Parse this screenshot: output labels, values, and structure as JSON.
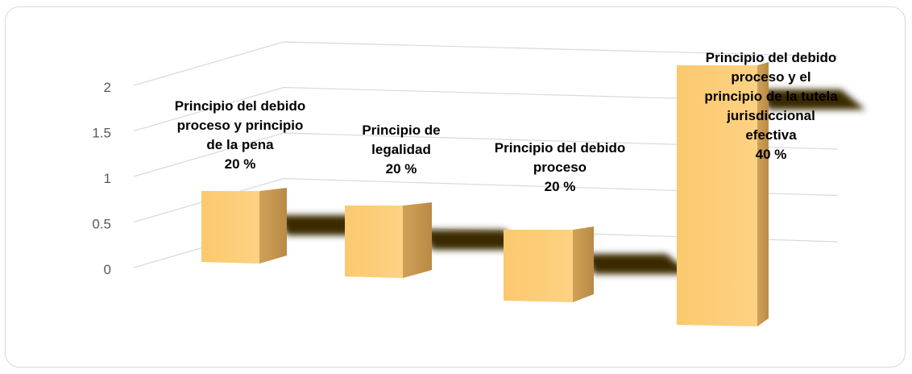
{
  "chart_data": {
    "type": "bar",
    "variant": "3d-column",
    "categories": [
      "Principio del debido proceso y principio de la pena",
      "Principio de legalidad",
      "Principio del debido proceso",
      "Principio del debido proceso y el principio de la tutela jurisdiccional efectiva"
    ],
    "values": [
      1,
      1,
      1,
      2
    ],
    "percent_labels": [
      "20 %",
      "20 %",
      "20 %",
      "40 %"
    ],
    "label_lines": [
      [
        "Principio del debido",
        "proceso y principio",
        "de la pena"
      ],
      [
        "Principio de",
        "legalidad"
      ],
      [
        "Principio del debido",
        "proceso"
      ],
      [
        "Principio del debido",
        "proceso y el",
        "principio de la tutela",
        "jurisdiccional",
        "efectiva"
      ]
    ],
    "ylim": [
      0,
      2
    ],
    "yticks": [
      "0",
      "0.5",
      "1",
      "1.5",
      "2"
    ],
    "grid": true,
    "colors": {
      "bar_front": "#fdd283",
      "bar_side": "#d0a258",
      "bar_top": "#ffe3a6",
      "grid": "#d9d9d9",
      "shadow": "#3a2b00"
    }
  }
}
